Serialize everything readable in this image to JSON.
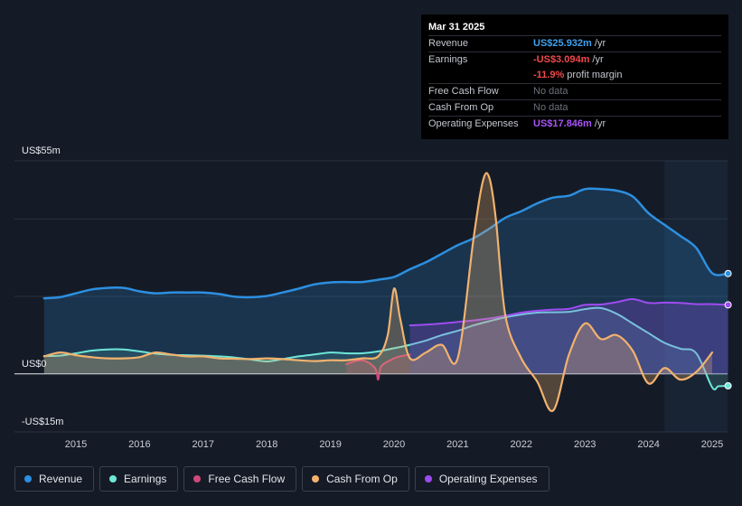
{
  "tooltip": {
    "date": "Mar 31 2025",
    "rows": [
      {
        "label": "Revenue",
        "value": "US$25.932m",
        "unit": " /yr",
        "color": "#3fa2ef"
      },
      {
        "label": "Earnings",
        "value": "-US$3.094m",
        "unit": " /yr",
        "color": "#f0494c"
      },
      {
        "label": "",
        "value": "-11.9%",
        "unit": " profit margin",
        "color": "#f0494c"
      },
      {
        "label": "Free Cash Flow",
        "value": "No data",
        "unit": "",
        "color": ""
      },
      {
        "label": "Cash From Op",
        "value": "No data",
        "unit": "",
        "color": ""
      },
      {
        "label": "Operating Expenses",
        "value": "US$17.846m",
        "unit": " /yr",
        "color": "#a855f7"
      }
    ]
  },
  "legend": [
    {
      "label": "Revenue",
      "color": "#2d8fe0"
    },
    {
      "label": "Earnings",
      "color": "#6ee7d8"
    },
    {
      "label": "Free Cash Flow",
      "color": "#d1477a"
    },
    {
      "label": "Cash From Op",
      "color": "#f2b26e"
    },
    {
      "label": "Operating Expenses",
      "color": "#9d4cf0"
    }
  ],
  "chart_data": {
    "type": "line",
    "title": "",
    "ylim": [
      -15,
      55
    ],
    "xlim": [
      2014.3,
      2025.25
    ],
    "y_axis_labels": [
      {
        "text": "US$55m",
        "value": 55
      },
      {
        "text": "US$0",
        "value": 0
      },
      {
        "text": "-US$15m",
        "value": -15
      }
    ],
    "x_ticks": [
      "2015",
      "2016",
      "2017",
      "2018",
      "2019",
      "2020",
      "2021",
      "2022",
      "2023",
      "2024",
      "2025"
    ],
    "x_tick_values": [
      2015,
      2016,
      2017,
      2018,
      2019,
      2020,
      2021,
      2022,
      2023,
      2024,
      2025
    ],
    "forecast_start": 2024.25,
    "series": [
      {
        "name": "Revenue",
        "color": "#2d8fe0",
        "fill": true,
        "x": [
          2014.5,
          2014.75,
          2015.0,
          2015.25,
          2015.5,
          2015.75,
          2016.0,
          2016.25,
          2016.5,
          2016.75,
          2017.0,
          2017.25,
          2017.5,
          2017.75,
          2018.0,
          2018.25,
          2018.5,
          2018.75,
          2019.0,
          2019.25,
          2019.5,
          2019.75,
          2020.0,
          2020.25,
          2020.5,
          2020.75,
          2021.0,
          2021.25,
          2021.5,
          2021.75,
          2022.0,
          2022.25,
          2022.5,
          2022.75,
          2023.0,
          2023.25,
          2023.5,
          2023.75,
          2024.0,
          2024.25,
          2024.5,
          2024.75,
          2025.0,
          2025.25
        ],
        "values": [
          19.5,
          19.8,
          20.8,
          21.8,
          22.2,
          22.2,
          21.3,
          20.8,
          21.0,
          21.0,
          21.0,
          20.6,
          19.9,
          19.8,
          20.1,
          21.0,
          22.0,
          23.1,
          23.6,
          23.7,
          23.7,
          24.3,
          25.0,
          27.0,
          28.8,
          31.0,
          33.2,
          35.0,
          37.5,
          40.3,
          42.0,
          44.0,
          45.5,
          46.0,
          47.7,
          47.7,
          47.3,
          45.8,
          41.5,
          38.5,
          35.6,
          32.5,
          26.0,
          25.9
        ],
        "marker_end": true
      },
      {
        "name": "Earnings",
        "color": "#6ee7d8",
        "fill": true,
        "x": [
          2014.5,
          2014.75,
          2015.0,
          2015.25,
          2015.5,
          2015.75,
          2016.0,
          2016.25,
          2016.5,
          2016.75,
          2017.0,
          2017.25,
          2017.5,
          2017.75,
          2018.0,
          2018.25,
          2018.5,
          2018.75,
          2019.0,
          2019.25,
          2019.5,
          2019.75,
          2020.0,
          2020.25,
          2020.5,
          2020.75,
          2021.0,
          2021.25,
          2021.5,
          2021.75,
          2022.0,
          2022.25,
          2022.5,
          2022.75,
          2023.0,
          2023.25,
          2023.5,
          2023.75,
          2024.0,
          2024.25,
          2024.5,
          2024.75,
          2025.0,
          2025.1,
          2025.25
        ],
        "values": [
          4.6,
          4.7,
          5.3,
          6.0,
          6.3,
          6.3,
          5.8,
          5.2,
          4.9,
          4.8,
          4.7,
          4.5,
          4.2,
          3.7,
          3.2,
          3.8,
          4.5,
          5.0,
          5.5,
          5.3,
          5.3,
          5.8,
          6.6,
          7.5,
          8.6,
          10.0,
          11.1,
          12.5,
          13.6,
          14.6,
          15.3,
          15.8,
          15.9,
          16.0,
          16.7,
          17.0,
          15.5,
          13.0,
          10.5,
          8.0,
          6.5,
          5.3,
          -3.5,
          -3.2,
          -3.1
        ],
        "marker_end": true
      },
      {
        "name": "Free Cash Flow",
        "color": "#d1477a",
        "fill": true,
        "x": [
          2019.25,
          2019.5,
          2019.7,
          2019.75,
          2019.8,
          2020.0,
          2020.1,
          2020.25
        ],
        "values": [
          2.5,
          3.5,
          1.5,
          -1.5,
          2.0,
          4.0,
          4.5,
          5.0
        ],
        "marker_end": false
      },
      {
        "name": "Cash From Op",
        "color": "#f2b26e",
        "fill": true,
        "x": [
          2014.5,
          2014.75,
          2015.0,
          2015.25,
          2015.5,
          2015.75,
          2016.0,
          2016.25,
          2016.5,
          2016.75,
          2017.0,
          2017.25,
          2017.5,
          2017.75,
          2018.0,
          2018.25,
          2018.5,
          2018.75,
          2019.0,
          2019.25,
          2019.5,
          2019.75,
          2019.9,
          2020.0,
          2020.1,
          2020.25,
          2020.5,
          2020.75,
          2021.0,
          2021.25,
          2021.4,
          2021.5,
          2021.6,
          2021.75,
          2022.0,
          2022.25,
          2022.5,
          2022.75,
          2023.0,
          2023.25,
          2023.5,
          2023.75,
          2024.0,
          2024.25,
          2024.5,
          2024.75,
          2025.0
        ],
        "values": [
          4.5,
          5.5,
          4.8,
          4.3,
          4.0,
          4.0,
          4.3,
          5.5,
          5.0,
          4.5,
          4.5,
          4.0,
          3.9,
          3.8,
          4.0,
          3.8,
          3.5,
          3.3,
          3.5,
          3.5,
          4.0,
          4.5,
          10.0,
          22.0,
          14.0,
          4.0,
          5.5,
          7.5,
          4.0,
          35.0,
          50.0,
          50.5,
          40.0,
          15.0,
          4.0,
          -2.0,
          -9.5,
          5.0,
          13.0,
          9.0,
          10.0,
          6.0,
          -2.5,
          1.5,
          -1.5,
          0.5,
          5.5
        ],
        "marker_end": false
      },
      {
        "name": "Operating Expenses",
        "color": "#9d4cf0",
        "fill": true,
        "x": [
          2020.25,
          2020.5,
          2020.75,
          2021.0,
          2021.25,
          2021.5,
          2021.75,
          2022.0,
          2022.25,
          2022.5,
          2022.75,
          2023.0,
          2023.25,
          2023.5,
          2023.75,
          2024.0,
          2024.25,
          2024.5,
          2024.75,
          2025.0,
          2025.25
        ],
        "values": [
          12.5,
          12.7,
          13.0,
          13.4,
          13.8,
          14.3,
          15.0,
          15.8,
          16.3,
          16.6,
          16.8,
          17.8,
          17.9,
          18.5,
          19.3,
          18.3,
          18.4,
          18.3,
          18.0,
          18.0,
          17.8
        ],
        "marker_end": true
      }
    ]
  }
}
